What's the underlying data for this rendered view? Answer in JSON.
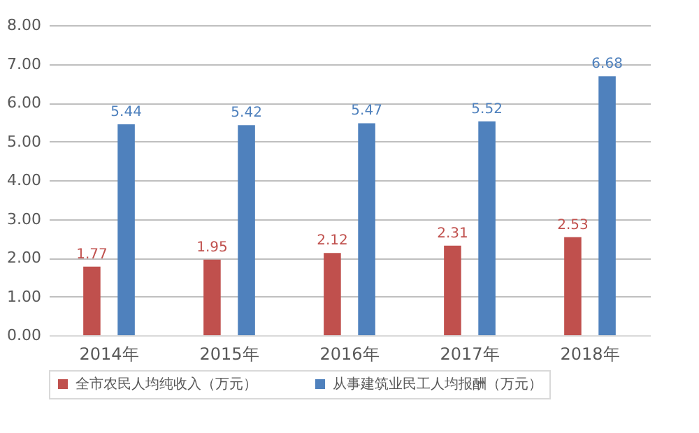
{
  "chart_data": {
    "type": "bar",
    "categories": [
      "2014年",
      "2015年",
      "2016年",
      "2017年",
      "2018年"
    ],
    "series": [
      {
        "name": "全市农民人均纯收入（万元）",
        "color": "#c0504d",
        "values": [
          1.77,
          1.95,
          2.12,
          2.31,
          2.53
        ]
      },
      {
        "name": "从事建筑业民工人均报酬（万元）",
        "color": "#4f81bd",
        "values": [
          5.44,
          5.42,
          5.47,
          5.52,
          6.68
        ]
      }
    ],
    "ylim": [
      0,
      8
    ],
    "yticks": [
      {
        "value": 0,
        "label": "0.00"
      },
      {
        "value": 1,
        "label": "1.00"
      },
      {
        "value": 2,
        "label": "2.00"
      },
      {
        "value": 3,
        "label": "3.00"
      },
      {
        "value": 4,
        "label": "4.00"
      },
      {
        "value": 5,
        "label": "5.00"
      },
      {
        "value": 6,
        "label": "6.00"
      },
      {
        "value": 7,
        "label": "7.00"
      },
      {
        "value": 8,
        "label": "8.00"
      }
    ],
    "grid": "y",
    "legend": "bottom",
    "data_labels": true
  }
}
